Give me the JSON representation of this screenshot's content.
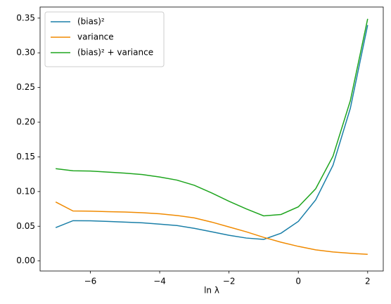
{
  "chart_data": {
    "type": "line",
    "x_label": "ln λ",
    "x": [
      -7,
      -6.5,
      -6,
      -5.5,
      -5,
      -4.5,
      -4,
      -3.5,
      -3,
      -2.5,
      -2,
      -1.5,
      -1,
      -0.5,
      0,
      0.5,
      1,
      1.5,
      2
    ],
    "series": [
      {
        "name": "(bias)²",
        "color": "#1a7fa8",
        "values": [
          0.048,
          0.058,
          0.0578,
          0.057,
          0.056,
          0.055,
          0.053,
          0.051,
          0.047,
          0.042,
          0.037,
          0.033,
          0.031,
          0.04,
          0.057,
          0.088,
          0.138,
          0.22,
          0.34
        ]
      },
      {
        "name": "variance",
        "color": "#f08a00",
        "values": [
          0.085,
          0.072,
          0.0718,
          0.071,
          0.0705,
          0.0695,
          0.068,
          0.0655,
          0.062,
          0.056,
          0.049,
          0.042,
          0.034,
          0.027,
          0.021,
          0.016,
          0.013,
          0.011,
          0.0095
        ]
      },
      {
        "name": "(bias)² + variance",
        "color": "#1ea51e",
        "values": [
          0.133,
          0.13,
          0.1296,
          0.128,
          0.1265,
          0.1245,
          0.121,
          0.1165,
          0.109,
          0.098,
          0.086,
          0.075,
          0.065,
          0.067,
          0.078,
          0.104,
          0.151,
          0.231,
          0.349
        ]
      }
    ],
    "xlim": [
      -7.45,
      2.45
    ],
    "xticks": [
      {
        "value": -6,
        "label": "−6"
      },
      {
        "value": -4,
        "label": "−4"
      },
      {
        "value": -2,
        "label": "−2"
      },
      0,
      2
    ],
    "ylim": [
      -0.0145,
      0.366
    ],
    "yticks": [
      {
        "value": 0,
        "label": "0.00"
      },
      {
        "value": 0.05,
        "label": "0.05"
      },
      {
        "value": 0.1,
        "label": "0.10"
      },
      {
        "value": 0.15,
        "label": "0.15"
      },
      {
        "value": 0.2,
        "label": "0.20"
      },
      {
        "value": 0.25,
        "label": "0.25"
      },
      {
        "value": 0.3,
        "label": "0.30"
      },
      {
        "value": 0.35,
        "label": "0.35"
      }
    ],
    "legend": "upper left"
  }
}
